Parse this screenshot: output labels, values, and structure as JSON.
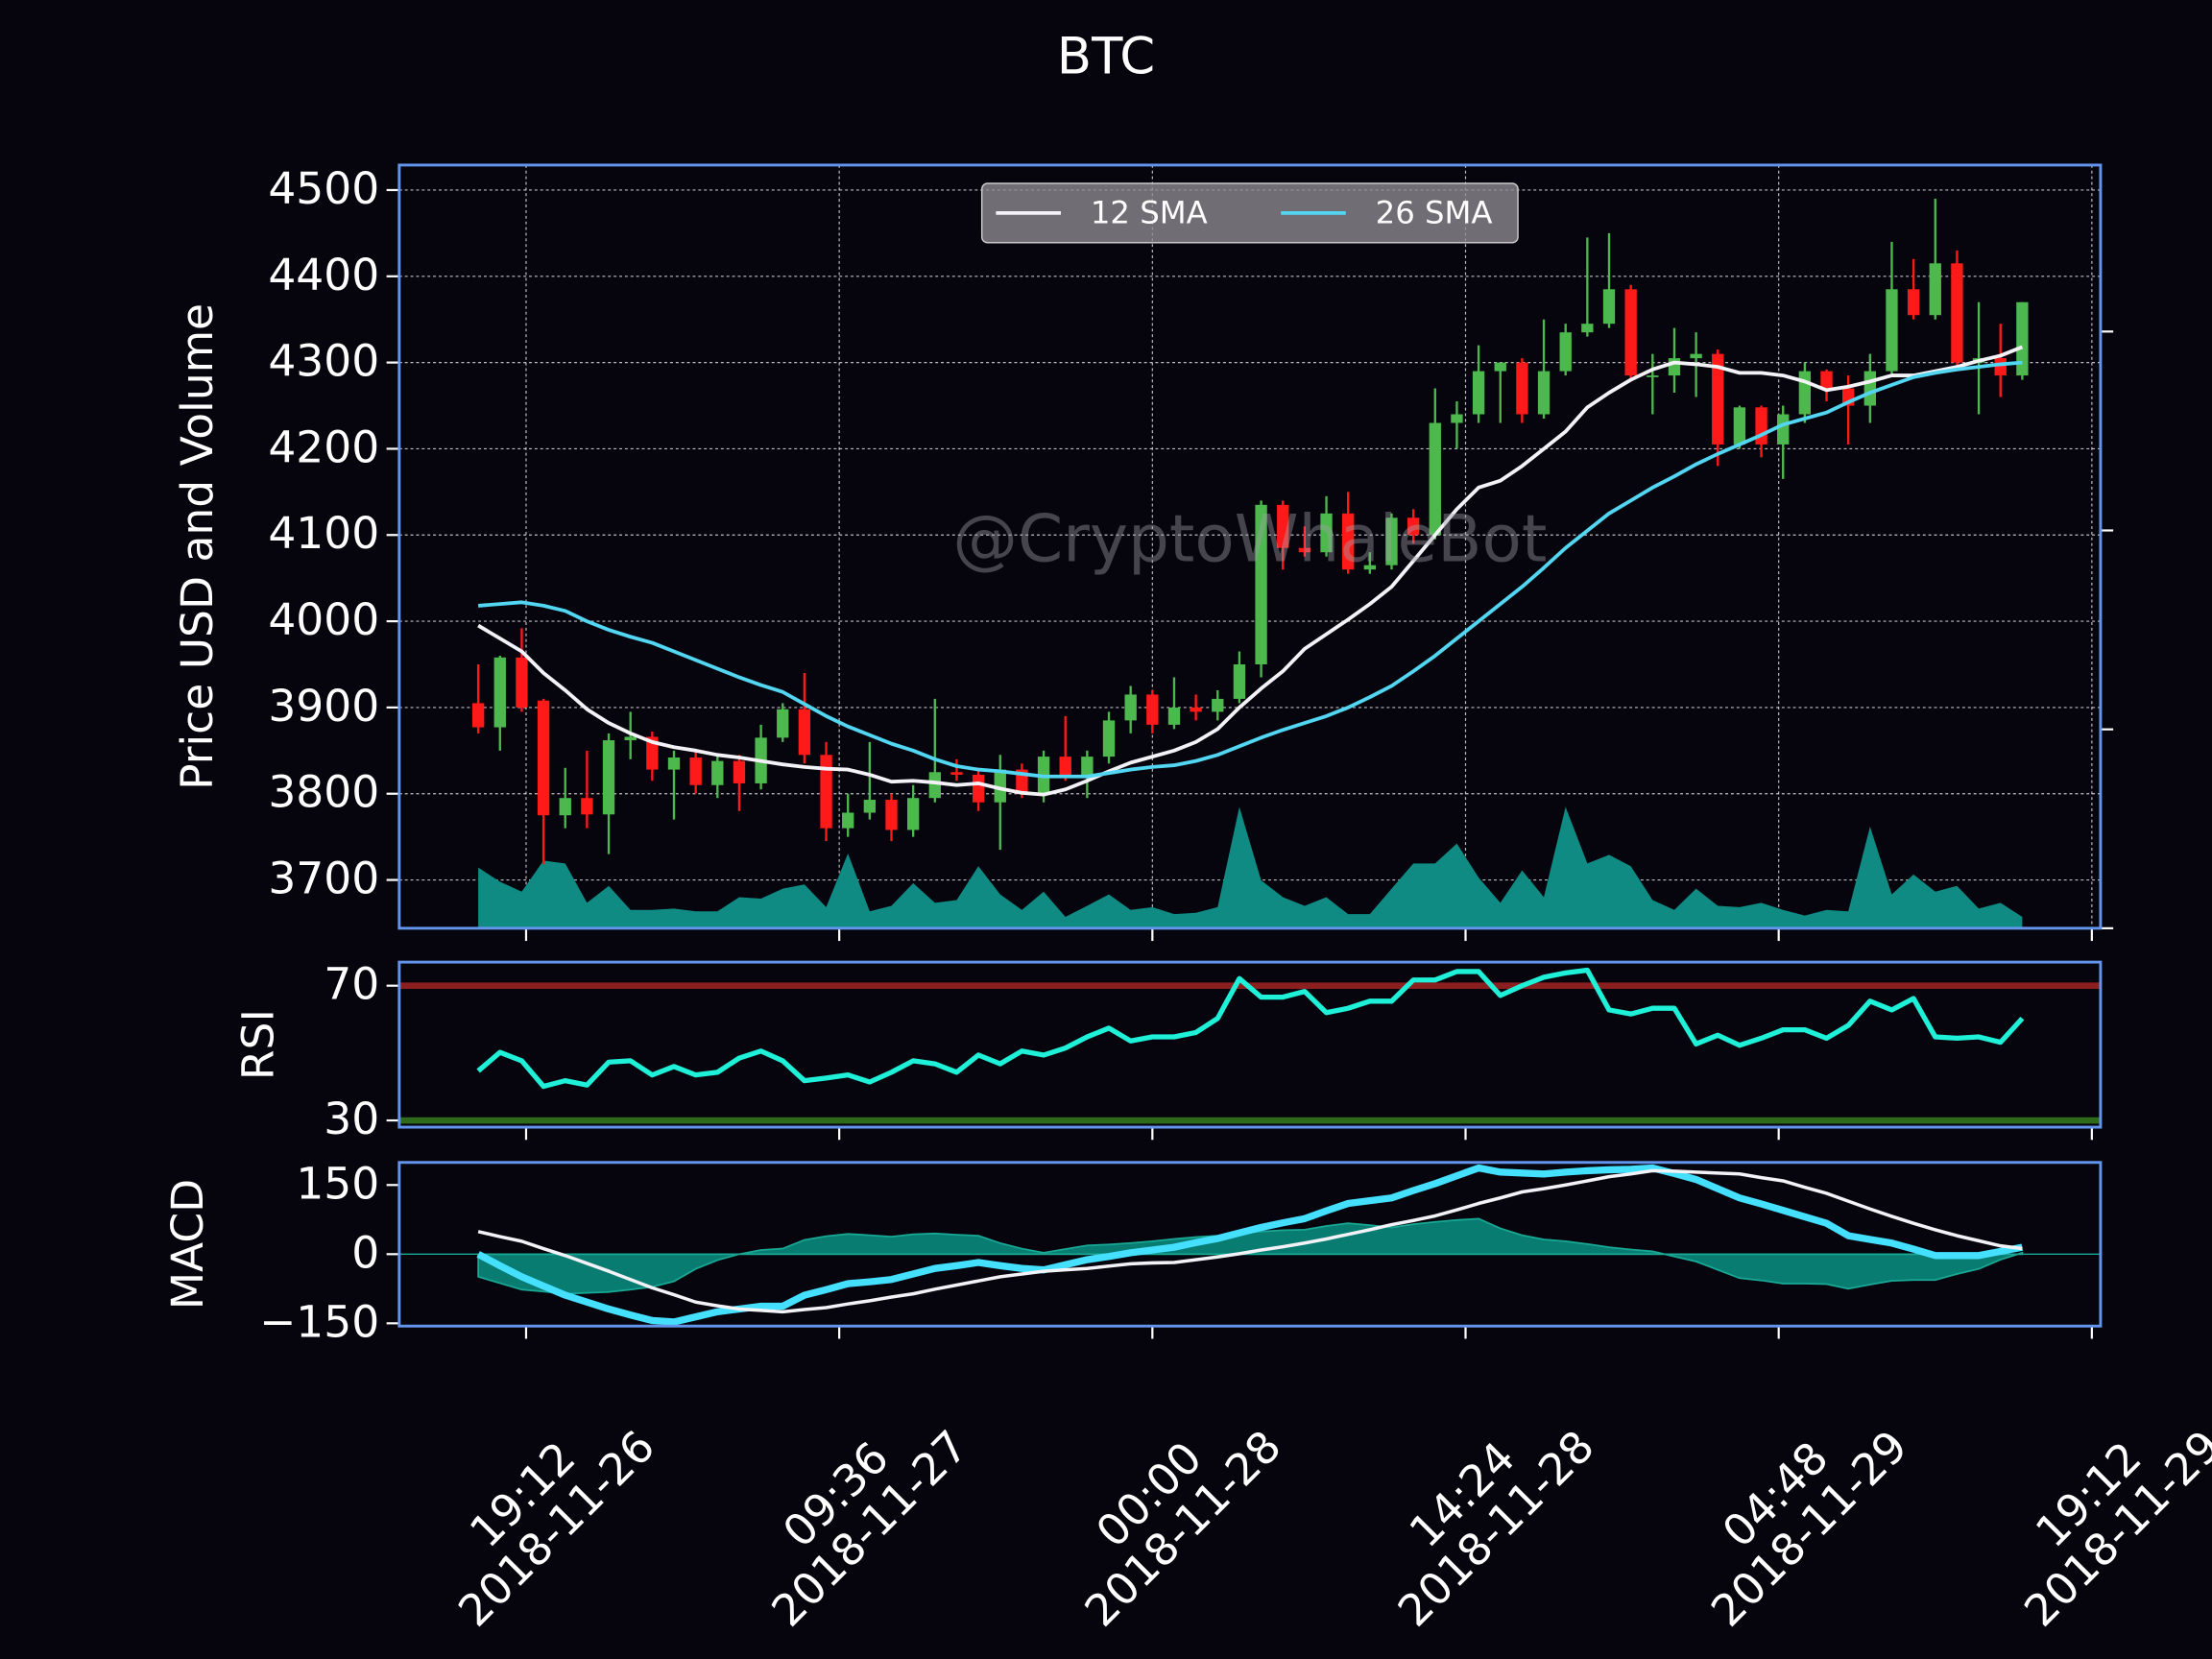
{
  "chart_data": {
    "type": "candlestick",
    "title": "BTC",
    "watermark": "@CryptoWhaleBot",
    "ylabel": "Price USD and Volume",
    "x": [
      "2018-11-26 17:00",
      "2018-11-26 18:00",
      "2018-11-26 19:00",
      "2018-11-26 20:00",
      "2018-11-26 21:00",
      "2018-11-26 22:00",
      "2018-11-26 23:00",
      "2018-11-27 00:00",
      "2018-11-27 01:00",
      "2018-11-27 02:00",
      "2018-11-27 03:00",
      "2018-11-27 04:00",
      "2018-11-27 05:00",
      "2018-11-27 06:00",
      "2018-11-27 07:00",
      "2018-11-27 08:00",
      "2018-11-27 09:00",
      "2018-11-27 10:00",
      "2018-11-27 11:00",
      "2018-11-27 12:00",
      "2018-11-27 13:00",
      "2018-11-27 14:00",
      "2018-11-27 15:00",
      "2018-11-27 16:00",
      "2018-11-27 17:00",
      "2018-11-27 18:00",
      "2018-11-27 19:00",
      "2018-11-27 20:00",
      "2018-11-27 21:00",
      "2018-11-27 22:00",
      "2018-11-27 23:00",
      "2018-11-28 00:00",
      "2018-11-28 01:00",
      "2018-11-28 02:00",
      "2018-11-28 03:00",
      "2018-11-28 04:00",
      "2018-11-28 05:00",
      "2018-11-28 06:00",
      "2018-11-28 07:00",
      "2018-11-28 08:00",
      "2018-11-28 09:00",
      "2018-11-28 10:00",
      "2018-11-28 11:00",
      "2018-11-28 12:00",
      "2018-11-28 13:00",
      "2018-11-28 14:00",
      "2018-11-28 15:00",
      "2018-11-28 16:00",
      "2018-11-28 17:00",
      "2018-11-28 18:00",
      "2018-11-28 19:00",
      "2018-11-28 20:00",
      "2018-11-28 21:00",
      "2018-11-28 22:00",
      "2018-11-28 23:00",
      "2018-11-29 00:00",
      "2018-11-29 01:00",
      "2018-11-29 02:00",
      "2018-11-29 03:00",
      "2018-11-29 04:00",
      "2018-11-29 05:00",
      "2018-11-29 06:00",
      "2018-11-29 07:00",
      "2018-11-29 08:00",
      "2018-11-29 09:00",
      "2018-11-29 10:00",
      "2018-11-29 11:00",
      "2018-11-29 12:00",
      "2018-11-29 13:00",
      "2018-11-29 14:00",
      "2018-11-29 15:00",
      "2018-11-29 16:00"
    ],
    "xlim": [
      "2018-11-26 13:22",
      "2018-11-29 19:36"
    ],
    "xticks": [
      {
        "value": "2018-11-26 19:12",
        "label": "19:12\n2018-11-26"
      },
      {
        "value": "2018-11-27 09:36",
        "label": "09:36\n2018-11-27"
      },
      {
        "value": "2018-11-28 00:00",
        "label": "00:00\n2018-11-28"
      },
      {
        "value": "2018-11-28 14:24",
        "label": "14:24\n2018-11-28"
      },
      {
        "value": "2018-11-29 04:48",
        "label": "04:48\n2018-11-29"
      },
      {
        "value": "2018-11-29 19:12",
        "label": "19:12\n2018-11-29"
      }
    ],
    "open": [
      3905,
      3877,
      3958,
      3908,
      3775,
      3795,
      3776,
      3862,
      3866,
      3828,
      3842,
      3810,
      3838,
      3812,
      3865,
      3898,
      3845,
      3760,
      3778,
      3793,
      3758,
      3795,
      3825,
      3822,
      3790,
      3828,
      3800,
      3843,
      3820,
      3843,
      3885,
      3915,
      3880,
      3900,
      3895,
      3910,
      3950,
      4135,
      4085,
      4080,
      4125,
      4060,
      4065,
      4120,
      4100,
      4230,
      4240,
      4290,
      4300,
      4240,
      4290,
      4335,
      4345,
      4385,
      4285,
      4285,
      4305,
      4310,
      4205,
      4248,
      4205,
      4240,
      4290,
      4270,
      4250,
      4290,
      4385,
      4355,
      4415,
      4300,
      4305,
      4285
    ],
    "high": [
      3950,
      3960,
      3992,
      3910,
      3830,
      3850,
      3870,
      3895,
      3872,
      3850,
      3850,
      3845,
      3845,
      3880,
      3905,
      3940,
      3860,
      3800,
      3860,
      3800,
      3810,
      3910,
      3840,
      3830,
      3845,
      3835,
      3850,
      3890,
      3850,
      3895,
      3925,
      3920,
      3935,
      3915,
      3920,
      3965,
      4140,
      4140,
      4110,
      4145,
      4150,
      4080,
      4125,
      4130,
      4270,
      4255,
      4320,
      4300,
      4305,
      4350,
      4345,
      4445,
      4450,
      4390,
      4310,
      4340,
      4335,
      4315,
      4250,
      4250,
      4250,
      4300,
      4292,
      4285,
      4310,
      4440,
      4420,
      4490,
      4430,
      4370,
      4345,
      4370
    ],
    "low": [
      3870,
      3850,
      3895,
      3718,
      3760,
      3760,
      3730,
      3840,
      3815,
      3770,
      3800,
      3795,
      3780,
      3805,
      3860,
      3835,
      3745,
      3750,
      3770,
      3745,
      3750,
      3790,
      3815,
      3780,
      3735,
      3795,
      3790,
      3815,
      3795,
      3835,
      3870,
      3870,
      3875,
      3885,
      3885,
      3905,
      3935,
      4060,
      4075,
      4075,
      4055,
      4055,
      4060,
      4090,
      4095,
      4200,
      4230,
      4230,
      4230,
      4235,
      4285,
      4330,
      4340,
      4280,
      4240,
      4265,
      4260,
      4180,
      4200,
      4190,
      4165,
      4230,
      4255,
      4205,
      4230,
      4285,
      4350,
      4350,
      4295,
      4240,
      4260,
      4280
    ],
    "close": [
      3877,
      3958,
      3900,
      3775,
      3795,
      3776,
      3862,
      3866,
      3828,
      3842,
      3810,
      3838,
      3812,
      3865,
      3898,
      3845,
      3760,
      3778,
      3793,
      3758,
      3795,
      3825,
      3822,
      3790,
      3828,
      3800,
      3843,
      3820,
      3843,
      3885,
      3915,
      3880,
      3900,
      3895,
      3910,
      3950,
      4135,
      4085,
      4080,
      4125,
      4060,
      4065,
      4120,
      4100,
      4230,
      4240,
      4290,
      4300,
      4240,
      4290,
      4335,
      4345,
      4385,
      4285,
      4285,
      4305,
      4310,
      4205,
      4248,
      4205,
      4240,
      4290,
      4270,
      4250,
      4290,
      4385,
      4355,
      4415,
      4300,
      4305,
      4285,
      4370
    ],
    "colors": {
      "up": "#4db84e",
      "down": "#ff1a1a"
    },
    "series": [
      {
        "name": "12 SMA",
        "color": "#f2f2f7",
        "values": [
          3995,
          3980,
          3965,
          3940,
          3920,
          3898,
          3882,
          3870,
          3860,
          3854,
          3850,
          3845,
          3842,
          3838,
          3834,
          3831,
          3829,
          3828,
          3822,
          3814,
          3815,
          3813,
          3810,
          3812,
          3806,
          3801,
          3799,
          3805,
          3815,
          3826,
          3836,
          3843,
          3850,
          3860,
          3875,
          3900,
          3922,
          3942,
          3968,
          3985,
          4002,
          4020,
          4040,
          4070,
          4100,
          4130,
          4155,
          4163,
          4180,
          4200,
          4220,
          4248,
          4265,
          4280,
          4292,
          4300,
          4298,
          4295,
          4288,
          4288,
          4285,
          4278,
          4268,
          4272,
          4278,
          4285,
          4285,
          4290,
          4295,
          4302,
          4308,
          4318
        ]
      },
      {
        "name": "26 SMA",
        "color": "#52d6f2",
        "values": [
          4018,
          4020,
          4022,
          4018,
          4012,
          4000,
          3990,
          3982,
          3975,
          3965,
          3955,
          3945,
          3935,
          3926,
          3918,
          3904,
          3890,
          3878,
          3868,
          3858,
          3850,
          3840,
          3832,
          3828,
          3826,
          3823,
          3820,
          3820,
          3820,
          3824,
          3828,
          3831,
          3833,
          3838,
          3845,
          3855,
          3865,
          3874,
          3882,
          3890,
          3900,
          3912,
          3925,
          3942,
          3960,
          3980,
          4000,
          4020,
          4040,
          4062,
          4085,
          4105,
          4125,
          4140,
          4155,
          4168,
          4182,
          4194,
          4205,
          4216,
          4228,
          4235,
          4242,
          4254,
          4265,
          4274,
          4283,
          4288,
          4292,
          4295,
          4298,
          4300
        ]
      }
    ],
    "volume": {
      "axis": "y2",
      "color": "#0f8b84",
      "values": [
        305,
        234,
        184,
        340,
        326,
        128,
        213,
        92,
        92,
        99,
        85,
        85,
        156,
        149,
        199,
        220,
        106,
        376,
        85,
        113,
        227,
        128,
        142,
        312,
        170,
        92,
        184,
        57,
        113,
        170,
        92,
        106,
        71,
        78,
        106,
        610,
        241,
        156,
        113,
        156,
        71,
        71,
        199,
        326,
        326,
        426,
        255,
        128,
        291,
        156,
        610,
        326,
        369,
        312,
        142,
        92,
        199,
        113,
        106,
        128,
        92,
        64,
        92,
        85,
        511,
        170,
        270,
        184,
        213,
        99,
        128,
        57
      ]
    },
    "ylim": [
      3644,
      4529
    ],
    "yticks": [
      3700,
      3800,
      3900,
      4000,
      4100,
      4200,
      4300,
      4400,
      4500
    ],
    "y2lim": [
      0,
      3837
    ],
    "y2ticks": [
      0,
      1000,
      2000,
      3000
    ],
    "grid": true,
    "legend": "upper center",
    "panels": [
      {
        "type": "line",
        "ylabel": "RSI",
        "ylim": [
          28,
          77
        ],
        "yticks": [
          30,
          70
        ],
        "hlines": [
          {
            "value": 70,
            "color": "#8b1e1e"
          },
          {
            "value": 30,
            "color": "#2f6a1b"
          }
        ],
        "series": [
          {
            "color": "#1ff0d8",
            "values": [
              44.7,
              50.2,
              47.7,
              40.1,
              41.8,
              40.5,
              47.3,
              47.7,
              43.5,
              46,
              43.5,
              44.3,
              48.5,
              50.6,
              47.7,
              41.8,
              42.6,
              43.5,
              41.4,
              44.3,
              47.7,
              46.8,
              44.3,
              49.4,
              46.8,
              50.6,
              49.4,
              51.5,
              54.8,
              57.4,
              53.6,
              54.8,
              54.8,
              56.1,
              60.3,
              72.1,
              66.6,
              66.6,
              68.3,
              62,
              63.3,
              65.4,
              65.4,
              71.7,
              71.7,
              74.2,
              74.2,
              67.1,
              70,
              72.5,
              73.8,
              74.6,
              62.8,
              61.6,
              63.3,
              63.3,
              52.7,
              55.3,
              52.3,
              54.4,
              56.9,
              56.9,
              54.4,
              58.2,
              65.4,
              62.8,
              66.2,
              54.8,
              54.4,
              54.8,
              53.2,
              60.3
            ]
          }
        ]
      },
      {
        "type": "line",
        "ylabel": "MACD",
        "ylim": [
          -156,
          199
        ],
        "yticks": [
          {
            "value": -150,
            "label": "−150"
          },
          0,
          150
        ],
        "histogram": {
          "color": "#0a8a7c",
          "values": [
            -49,
            -63,
            -77,
            -81,
            -86,
            -84,
            -82,
            -77,
            -71,
            -59,
            -32,
            -13,
            0,
            9,
            12,
            31,
            39,
            44,
            41,
            38,
            43,
            45,
            42,
            40,
            24,
            12,
            3,
            11,
            19,
            21,
            24,
            28,
            33,
            37,
            40,
            45,
            49,
            52,
            53,
            61,
            67,
            63,
            58,
            65,
            70,
            74,
            77,
            56,
            41,
            32,
            28,
            22,
            15,
            10,
            6,
            -5,
            -16,
            -34,
            -52,
            -57,
            -64,
            -64,
            -65,
            -75,
            -66,
            -58,
            -56,
            -56,
            -43,
            -32,
            -12,
            3
          ]
        },
        "series": [
          {
            "color": "#45e0ff",
            "values": [
              0,
              -25,
              -49,
              -69,
              -89,
              -104,
              -119,
              -132,
              -144,
              -147,
              -136,
              -125,
              -119,
              -113,
              -113,
              -89,
              -77,
              -64,
              -60,
              -55,
              -43,
              -31,
              -25,
              -18,
              -25,
              -31,
              -34,
              -23,
              -12,
              -5,
              3,
              9,
              15,
              25,
              34,
              46,
              58,
              68,
              77,
              94,
              110,
              116,
              122,
              138,
              153,
              170,
              187,
              178,
              176,
              174,
              178,
              181,
              183,
              184,
              187,
              175,
              162,
              142,
              122,
              109,
              95,
              81,
              67,
              40,
              32,
              24,
              11,
              -3,
              -3,
              -3,
              6,
              15
            ]
          },
          {
            "color": "#f2f2f7",
            "values": [
              49,
              38,
              28,
              12,
              -3,
              -20,
              -37,
              -55,
              -73,
              -88,
              -104,
              -112,
              -119,
              -122,
              -125,
              -120,
              -116,
              -108,
              -101,
              -93,
              -86,
              -76,
              -67,
              -58,
              -49,
              -43,
              -37,
              -34,
              -31,
              -26,
              -21,
              -19,
              -18,
              -12,
              -6,
              1,
              9,
              16,
              24,
              33,
              43,
              53,
              64,
              73,
              83,
              96,
              110,
              122,
              135,
              142,
              150,
              159,
              168,
              174,
              181,
              180,
              178,
              176,
              174,
              166,
              159,
              145,
              132,
              115,
              98,
              82,
              67,
              53,
              40,
              29,
              18,
              12
            ]
          }
        ]
      }
    ]
  }
}
